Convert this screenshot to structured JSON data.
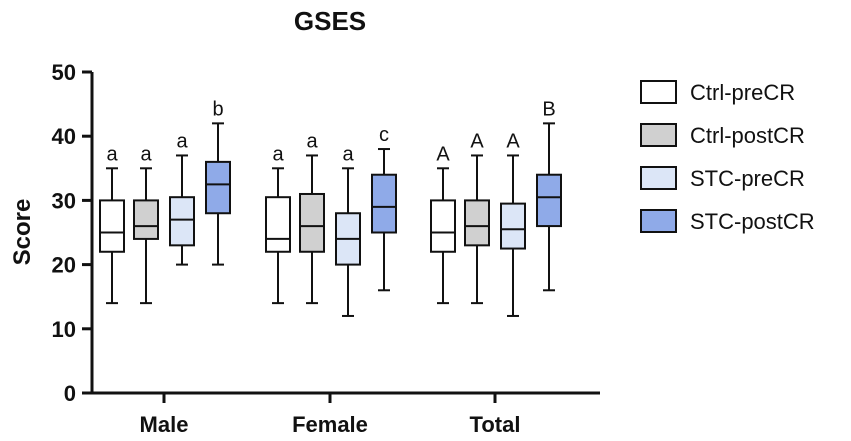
{
  "chart_data": {
    "type": "boxplot",
    "title": "GSES",
    "xlabel": "",
    "ylabel": "Score",
    "ylim": [
      0,
      50
    ],
    "yticks": [
      0,
      10,
      20,
      30,
      40,
      50
    ],
    "categories": [
      "Male",
      "Female",
      "Total"
    ],
    "legend_position": "right",
    "series": [
      {
        "name": "Ctrl-preCR",
        "color": "#ffffff",
        "boxes": [
          {
            "min": 14,
            "q1": 22,
            "median": 25,
            "q3": 30,
            "max": 35,
            "label": "a"
          },
          {
            "min": 14,
            "q1": 22,
            "median": 24,
            "q3": 30.5,
            "max": 35,
            "label": "a"
          },
          {
            "min": 14,
            "q1": 22,
            "median": 25,
            "q3": 30,
            "max": 35,
            "label": "A"
          }
        ]
      },
      {
        "name": "Ctrl-postCR",
        "color": "#d0d0d0",
        "boxes": [
          {
            "min": 14,
            "q1": 24,
            "median": 26,
            "q3": 30,
            "max": 35,
            "label": "a"
          },
          {
            "min": 14,
            "q1": 22,
            "median": 26,
            "q3": 31,
            "max": 37,
            "label": "a"
          },
          {
            "min": 14,
            "q1": 23,
            "median": 26,
            "q3": 30,
            "max": 37,
            "label": "A"
          }
        ]
      },
      {
        "name": "STC-preCR",
        "color": "#dce6f7",
        "boxes": [
          {
            "min": 20,
            "q1": 23,
            "median": 27,
            "q3": 30.5,
            "max": 37,
            "label": "a"
          },
          {
            "min": 12,
            "q1": 20,
            "median": 24,
            "q3": 28,
            "max": 35,
            "label": "a"
          },
          {
            "min": 12,
            "q1": 22.5,
            "median": 25.5,
            "q3": 29.5,
            "max": 37,
            "label": "A"
          }
        ]
      },
      {
        "name": "STC-postCR",
        "color": "#8faae8",
        "boxes": [
          {
            "min": 20,
            "q1": 28,
            "median": 32.5,
            "q3": 36,
            "max": 42,
            "label": "b"
          },
          {
            "min": 16,
            "q1": 25,
            "median": 29,
            "q3": 34,
            "max": 38,
            "label": "c"
          },
          {
            "min": 16,
            "q1": 26,
            "median": 30.5,
            "q3": 34,
            "max": 42,
            "label": "B"
          }
        ]
      }
    ]
  }
}
